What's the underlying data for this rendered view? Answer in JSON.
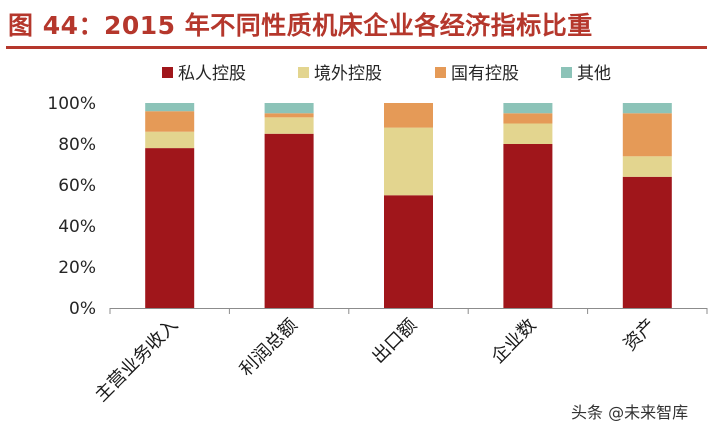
{
  "figure": {
    "title": "图 44：2015 年不同性质机床企业各经济指标比重",
    "watermark": "头条 @未来智库",
    "accent_color": "#b5372c"
  },
  "chart_data": {
    "type": "bar",
    "stacked": true,
    "categories": [
      "主营业务收入",
      "利润总额",
      "出口额",
      "企业数",
      "资产"
    ],
    "series": [
      {
        "name": "私人控股",
        "color": "#a0161b",
        "values": [
          78,
          85,
          55,
          80,
          64
        ]
      },
      {
        "name": "境外控股",
        "color": "#e3d58f",
        "values": [
          8,
          8,
          33,
          10,
          10
        ]
      },
      {
        "name": "国有控股",
        "color": "#e59a57",
        "values": [
          10,
          2,
          12,
          5,
          21
        ]
      },
      {
        "name": "其他",
        "color": "#8cc3b8",
        "values": [
          4,
          5,
          0,
          5,
          5
        ]
      }
    ],
    "y_ticks": [
      "0%",
      "20%",
      "40%",
      "60%",
      "80%",
      "100%"
    ],
    "ylim": [
      0,
      100
    ],
    "ylabel": "",
    "xlabel": "",
    "legend_position": "top-center",
    "grid": false
  }
}
